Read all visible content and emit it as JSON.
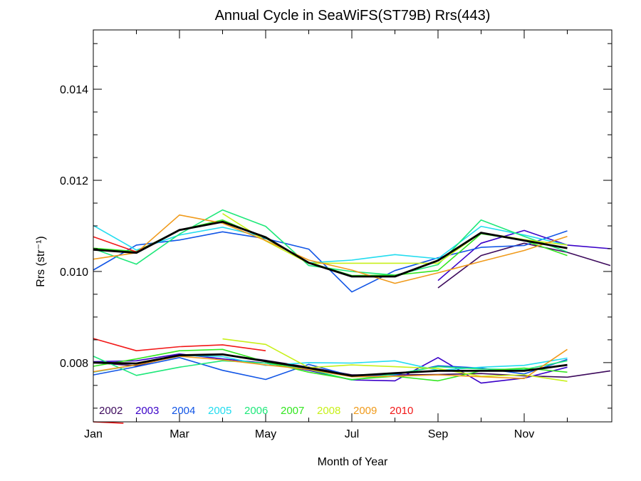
{
  "chart_data": {
    "type": "line",
    "title": "Annual Cycle in SeaWiFS(ST79B) Rrs(443)",
    "xlabel": "Month of Year",
    "ylabel": "Rrs (str⁻¹)",
    "xlim": [
      0,
      12
    ],
    "ylim": [
      0.0067,
      0.0153
    ],
    "x_ticks": [
      {
        "value": 0,
        "label": "Jan"
      },
      {
        "value": 2,
        "label": "Mar"
      },
      {
        "value": 4,
        "label": "May"
      },
      {
        "value": 6,
        "label": "Jul"
      },
      {
        "value": 8,
        "label": "Sep"
      },
      {
        "value": 10,
        "label": "Nov"
      }
    ],
    "x_minor_ticks": [
      1,
      3,
      5,
      7,
      9,
      11
    ],
    "y_ticks": [
      {
        "value": 0.008,
        "label": "0.008"
      },
      {
        "value": 0.01,
        "label": "0.010"
      },
      {
        "value": 0.012,
        "label": "0.012"
      },
      {
        "value": 0.014,
        "label": "0.014"
      }
    ],
    "y_minor_ticks": [
      0.007,
      0.0075,
      0.0085,
      0.009,
      0.0095,
      0.0105,
      0.011,
      0.0115,
      0.0125,
      0.013,
      0.0135,
      0.0145,
      0.015
    ],
    "x": [
      0,
      1,
      2,
      3,
      4,
      5,
      6,
      7,
      8,
      9,
      10,
      11,
      12
    ],
    "legend": [
      {
        "name": "2002",
        "color": "#3d0a5c"
      },
      {
        "name": "2003",
        "color": "#3a00c8"
      },
      {
        "name": "2004",
        "color": "#1155e6"
      },
      {
        "name": "2005",
        "color": "#22dcef"
      },
      {
        "name": "2006",
        "color": "#1ee87a"
      },
      {
        "name": "2007",
        "color": "#33e620"
      },
      {
        "name": "2008",
        "color": "#c8f01a"
      },
      {
        "name": "2009",
        "color": "#f09a1a"
      },
      {
        "name": "2010",
        "color": "#f21818"
      }
    ],
    "series": [
      {
        "name": "2002",
        "group": "upper",
        "values": [
          null,
          null,
          null,
          null,
          null,
          null,
          null,
          null,
          0.00964,
          0.01035,
          0.01062,
          0.01042,
          0.01013
        ]
      },
      {
        "name": "2003",
        "group": "upper",
        "values": [
          null,
          null,
          null,
          null,
          null,
          null,
          null,
          null,
          0.0098,
          0.01062,
          0.0109,
          0.01058,
          0.0105
        ]
      },
      {
        "name": "2004",
        "group": "upper",
        "values": [
          0.01003,
          0.01058,
          0.01069,
          0.01087,
          0.01072,
          0.01049,
          0.00955,
          0.01002,
          0.0103,
          0.01053,
          0.01057,
          0.01089,
          null
        ]
      },
      {
        "name": "2005",
        "group": "upper",
        "values": [
          0.01101,
          0.01047,
          0.0108,
          0.01097,
          0.01075,
          0.01019,
          0.01025,
          0.01037,
          0.01028,
          0.01099,
          0.0108,
          0.01058,
          null
        ]
      },
      {
        "name": "2006",
        "group": "upper",
        "values": [
          0.0105,
          0.01016,
          0.01082,
          0.01135,
          0.01099,
          0.01013,
          0.01,
          0.00992,
          0.01015,
          0.01113,
          0.01077,
          0.01043,
          null
        ]
      },
      {
        "name": "2007",
        "group": "upper",
        "values": [
          0.01051,
          0.01044,
          0.01091,
          0.01113,
          0.01073,
          0.0102,
          0.00991,
          0.00992,
          0.01002,
          0.01083,
          0.01068,
          0.01035,
          null
        ]
      },
      {
        "name": "2008",
        "group": "upper",
        "values": [
          null,
          null,
          null,
          0.01127,
          0.01067,
          0.01018,
          0.01018,
          0.01018,
          0.01018,
          0.01085,
          0.0107,
          0.01058,
          null
        ]
      },
      {
        "name": "2009",
        "group": "upper",
        "values": [
          0.01027,
          0.01041,
          0.01124,
          0.01106,
          0.01068,
          0.01025,
          0.01003,
          0.00974,
          0.00997,
          0.01022,
          0.01046,
          0.01077,
          null
        ]
      },
      {
        "name": "2010",
        "group": "upper",
        "values": [
          0.01076,
          0.01043,
          0.01091,
          0.01109,
          null,
          null,
          null,
          null,
          null,
          null,
          null,
          null,
          null
        ]
      },
      {
        "name": "2002",
        "group": "lower",
        "values": [
          0.008,
          0.00793,
          0.00816,
          0.00818,
          0.00805,
          0.0079,
          0.00773,
          0.00773,
          0.00774,
          0.00776,
          0.00771,
          0.00768,
          0.00782
        ]
      },
      {
        "name": "2003",
        "group": "lower",
        "values": [
          0.00802,
          0.00804,
          0.00819,
          0.00808,
          0.00799,
          0.00783,
          0.00762,
          0.0076,
          0.00811,
          0.00755,
          0.00766,
          0.0079,
          null
        ]
      },
      {
        "name": "2004",
        "group": "lower",
        "values": [
          0.00773,
          0.00791,
          0.00811,
          0.00783,
          0.00763,
          0.00796,
          0.00771,
          0.00773,
          0.00793,
          0.00788,
          0.00775,
          0.00807,
          null
        ]
      },
      {
        "name": "2005",
        "group": "lower",
        "values": [
          0.00779,
          0.00795,
          0.00816,
          0.00813,
          0.00794,
          0.008,
          0.00799,
          0.00804,
          0.00783,
          0.0079,
          0.00794,
          0.0081,
          null
        ]
      },
      {
        "name": "2006",
        "group": "lower",
        "values": [
          0.00814,
          0.00772,
          0.0079,
          0.00804,
          0.00799,
          0.00785,
          0.00762,
          0.00775,
          0.00791,
          0.00786,
          0.00785,
          0.00804,
          null
        ]
      },
      {
        "name": "2007",
        "group": "lower",
        "values": [
          0.00792,
          0.00808,
          0.00826,
          0.00829,
          0.00802,
          0.00779,
          0.00763,
          0.0077,
          0.0076,
          0.00782,
          0.00788,
          0.00779,
          null
        ]
      },
      {
        "name": "2008",
        "group": "lower",
        "values": [
          null,
          null,
          null,
          0.00852,
          0.0084,
          0.00789,
          0.00795,
          0.00791,
          0.00787,
          0.0077,
          0.00773,
          0.00759,
          null
        ]
      },
      {
        "name": "2009",
        "group": "lower",
        "values": [
          0.0078,
          0.00795,
          0.00814,
          0.00806,
          0.00795,
          0.00785,
          0.00769,
          0.0077,
          0.00773,
          0.00769,
          0.00765,
          0.00829,
          null
        ]
      },
      {
        "name": "2010",
        "group": "lower",
        "values": [
          0.00853,
          0.00826,
          0.00835,
          0.00839,
          0.00826,
          null,
          null,
          null,
          null,
          null,
          null,
          null,
          null
        ]
      },
      {
        "name": "mean",
        "group": "upper-mean",
        "values": [
          0.01048,
          0.01041,
          0.01091,
          0.01109,
          0.01075,
          0.01019,
          0.00989,
          0.00989,
          0.01024,
          0.01085,
          0.01068,
          0.01051,
          null
        ]
      },
      {
        "name": "mean",
        "group": "lower-mean",
        "values": [
          0.008,
          0.00798,
          0.00816,
          0.00818,
          0.00803,
          0.00788,
          0.00771,
          0.00777,
          0.00782,
          0.00782,
          0.00782,
          0.00795,
          null
        ]
      }
    ],
    "extra_segment": {
      "name": "2010",
      "x": [
        0,
        0.7
      ],
      "values": [
        0.0067,
        0.00667
      ]
    },
    "grid": false,
    "legend_placement": "bottom-left"
  }
}
